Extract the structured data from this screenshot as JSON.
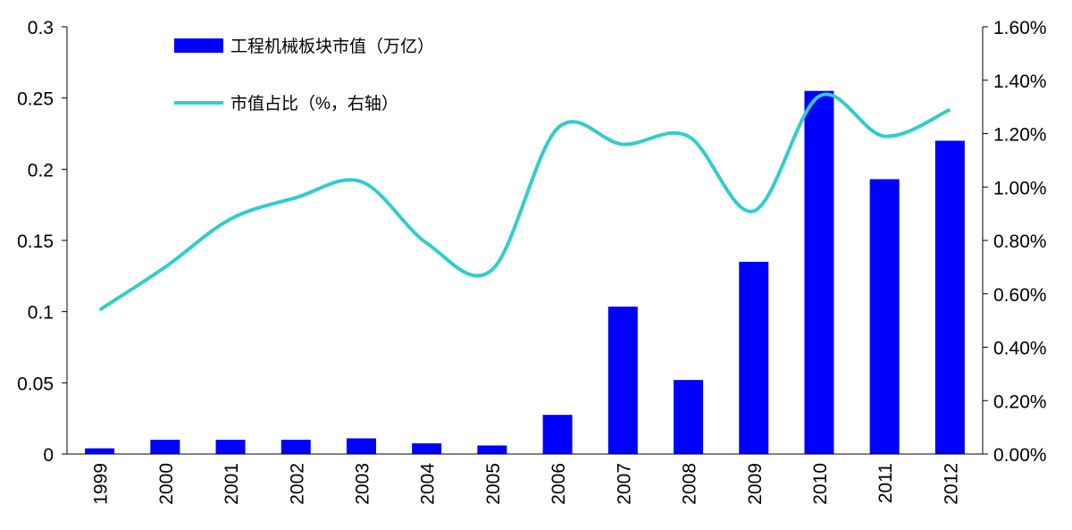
{
  "chart_data": {
    "type": "bar+line",
    "categories": [
      "1999",
      "2000",
      "2001",
      "2002",
      "2003",
      "2004",
      "2005",
      "2006",
      "2007",
      "2008",
      "2009",
      "2010",
      "2011",
      "2012"
    ],
    "series": [
      {
        "name": "工程机械板块市值（万亿）",
        "type": "bar",
        "axis": "left",
        "color": "#0000FF",
        "values": [
          0.004,
          0.01,
          0.01,
          0.01,
          0.011,
          0.0075,
          0.006,
          0.0275,
          0.1035,
          0.052,
          0.135,
          0.255,
          0.193,
          0.22
        ]
      },
      {
        "name": "市值占比（%，右轴）",
        "type": "line",
        "axis": "right",
        "color": "#33CCCC",
        "values": [
          0.54,
          0.7,
          0.88,
          0.96,
          1.02,
          0.79,
          0.69,
          1.22,
          1.16,
          1.19,
          0.91,
          1.34,
          1.19,
          1.29
        ]
      }
    ],
    "left_axis": {
      "ylim": [
        0,
        0.3
      ],
      "ticks": [
        "0",
        "0.05",
        "0.1",
        "0.15",
        "0.2",
        "0.25",
        "0.3"
      ]
    },
    "right_axis": {
      "ylim": [
        0,
        1.6
      ],
      "ticks": [
        "0.00%",
        "0.20%",
        "0.40%",
        "0.60%",
        "0.80%",
        "1.00%",
        "1.20%",
        "1.40%",
        "1.60%"
      ]
    },
    "legend_placement": "top-left",
    "grid": false
  }
}
